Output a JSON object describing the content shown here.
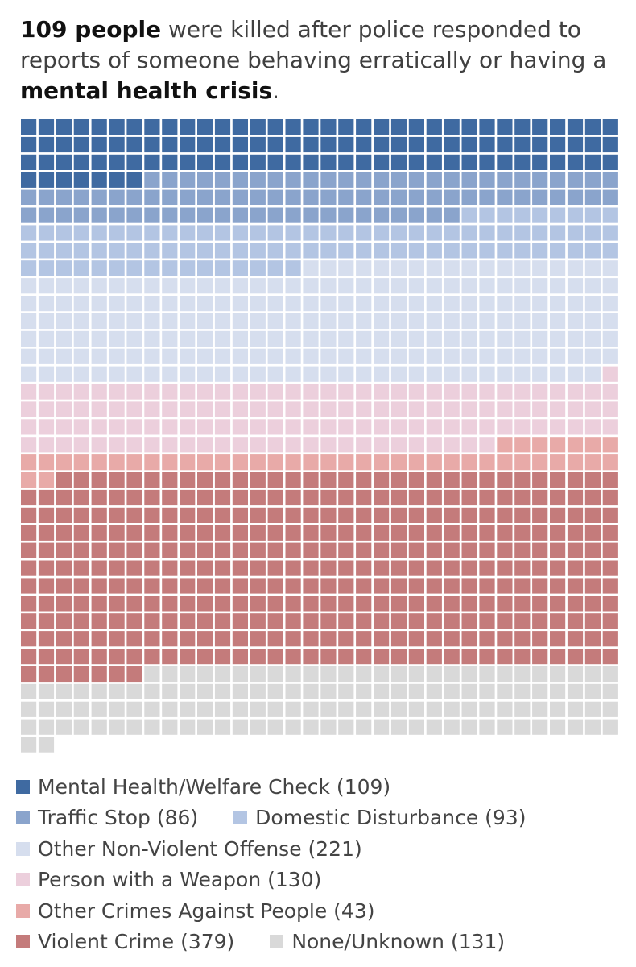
{
  "headline": {
    "count_bold": "109 people",
    "text_1": " were killed after police responded to reports of someone behaving erratically or having a ",
    "emphasis_bold": "mental health crisis",
    "text_end": "."
  },
  "chart_data": {
    "type": "waffle",
    "title": "109 people were killed after police responded to reports of someone behaving erratically or having a mental health crisis.",
    "columns": 34,
    "unit": "one square per person killed",
    "total": 1192,
    "categories": [
      {
        "name": "Mental Health/Welfare Check",
        "value": 109,
        "color": "#3f6aa1",
        "label": "Mental Health/Welfare Check (109)"
      },
      {
        "name": "Traffic Stop",
        "value": 86,
        "color": "#8aa4cc",
        "label": "Traffic Stop (86)"
      },
      {
        "name": "Domestic Disturbance",
        "value": 93,
        "color": "#b3c5e3",
        "label": "Domestic Disturbance (93)"
      },
      {
        "name": "Other Non-Violent Offense",
        "value": 221,
        "color": "#d6deee",
        "label": "Other Non-Violent Offense (221)"
      },
      {
        "name": "Person with a Weapon",
        "value": 130,
        "color": "#eccfdc",
        "label": "Person with a Weapon (130)"
      },
      {
        "name": "Other Crimes Against People",
        "value": 43,
        "color": "#e8aaa8",
        "label": "Other Crimes Against People (43)"
      },
      {
        "name": "Violent Crime",
        "value": 379,
        "color": "#c47b7b",
        "label": "Violent Crime (379)"
      },
      {
        "name": "None/Unknown",
        "value": 131,
        "color": "#d9d9d9",
        "label": "None/Unknown (131)"
      }
    ]
  }
}
